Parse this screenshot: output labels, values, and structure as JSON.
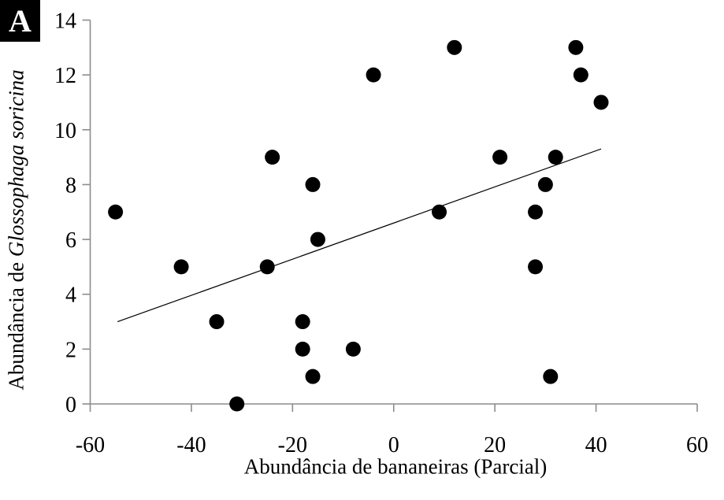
{
  "chart_data": {
    "type": "scatter",
    "panel_label": "A",
    "title": "",
    "xlabel": "Abundância de bananeiras (Parcial)",
    "ylabel_regular": "Abundância de ",
    "ylabel_italic": "Glossophaga soricina",
    "xlim": [
      -60,
      60
    ],
    "ylim": [
      0,
      14
    ],
    "xticks": [
      -60,
      -40,
      -20,
      0,
      20,
      40,
      60
    ],
    "yticks": [
      0,
      2,
      4,
      6,
      8,
      10,
      12,
      14
    ],
    "grid": false,
    "legend_position": "none",
    "marker_color": "#000000",
    "axis_color": "#8c8c8c",
    "trendline_color": "#000000",
    "points": [
      [
        -55,
        7
      ],
      [
        -42,
        5
      ],
      [
        -35,
        3
      ],
      [
        -31,
        0
      ],
      [
        -25,
        5
      ],
      [
        -24,
        9
      ],
      [
        -18,
        3
      ],
      [
        -18,
        2
      ],
      [
        -16,
        8
      ],
      [
        -16,
        1
      ],
      [
        -15,
        6
      ],
      [
        -8,
        2
      ],
      [
        -4,
        12
      ],
      [
        9,
        7
      ],
      [
        12,
        13
      ],
      [
        21,
        9
      ],
      [
        28,
        7
      ],
      [
        28,
        5
      ],
      [
        30,
        8
      ],
      [
        31,
        1
      ],
      [
        32,
        9
      ],
      [
        36,
        13
      ],
      [
        37,
        12
      ],
      [
        41,
        11
      ]
    ],
    "trendline": {
      "x1": -54.6,
      "y1": 3.0,
      "x2": 41.0,
      "y2": 9.3
    }
  }
}
